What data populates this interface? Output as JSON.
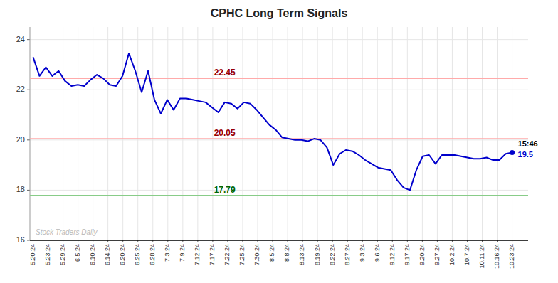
{
  "chart_data": {
    "type": "line",
    "title": "CPHC Long Term Signals",
    "color": "#0000cc",
    "x": [
      0,
      1,
      2,
      3,
      4,
      5,
      6,
      7,
      8,
      9,
      10,
      11,
      12,
      13,
      14,
      15,
      16,
      17,
      18,
      19,
      20,
      21,
      22,
      23,
      24,
      25,
      26,
      27,
      28,
      29,
      30,
      31,
      32,
      33,
      34,
      35,
      36,
      37,
      38,
      39,
      40,
      41,
      42,
      43,
      44,
      45,
      46,
      47,
      48,
      49,
      50,
      51,
      52,
      53,
      54,
      55,
      56,
      57,
      58,
      59,
      60,
      61,
      62,
      63,
      64,
      65,
      66,
      67,
      68,
      69,
      70,
      71,
      72,
      73,
      74,
      75
    ],
    "values": [
      23.3,
      22.55,
      22.9,
      22.55,
      22.75,
      22.35,
      22.15,
      22.2,
      22.15,
      22.4,
      22.6,
      22.45,
      22.2,
      22.15,
      22.55,
      23.45,
      22.75,
      21.9,
      22.75,
      21.6,
      21.05,
      21.6,
      21.2,
      21.65,
      21.65,
      21.6,
      21.55,
      21.5,
      21.3,
      21.1,
      21.5,
      21.45,
      21.25,
      21.5,
      21.45,
      21.2,
      20.9,
      20.6,
      20.4,
      20.1,
      20.05,
      20.0,
      20.0,
      19.95,
      20.05,
      20.0,
      19.7,
      19.0,
      19.45,
      19.6,
      19.55,
      19.4,
      19.2,
      19.05,
      18.9,
      18.85,
      18.8,
      18.4,
      18.1,
      18.0,
      18.8,
      19.35,
      19.4,
      19.05,
      19.4,
      19.4,
      19.4,
      19.35,
      19.3,
      19.25,
      19.25,
      19.3,
      19.2,
      19.2,
      19.45,
      19.5
    ],
    "value_labels": [
      null,
      null,
      null,
      null,
      null,
      null,
      null,
      null,
      null,
      null,
      null,
      null,
      null,
      null,
      null,
      null,
      null,
      null,
      null,
      null,
      null,
      null,
      null,
      null,
      null,
      null,
      null,
      null,
      null,
      null,
      null,
      null,
      null,
      null,
      null,
      null,
      null,
      null,
      null,
      null,
      null,
      null,
      null,
      null,
      null,
      null,
      null,
      null,
      null,
      null,
      null,
      null,
      null,
      null,
      null,
      null,
      null,
      null,
      null,
      null,
      null,
      null,
      null,
      null,
      null,
      null,
      null,
      null,
      null,
      null,
      null,
      null,
      null,
      null,
      null,
      "19.5"
    ],
    "xlim": [
      -0.5,
      77.5
    ],
    "xticks": [
      {
        "value": 0,
        "label": "5.20.24"
      },
      {
        "value": 2.34375,
        "label": "5.23.24"
      },
      {
        "value": 4.6875,
        "label": "5.29.24"
      },
      {
        "value": 7.03125,
        "label": "6.5.24"
      },
      {
        "value": 9.375,
        "label": "6.10.24"
      },
      {
        "value": 11.71875,
        "label": "6.14.24"
      },
      {
        "value": 14.0625,
        "label": "6.20.24"
      },
      {
        "value": 16.40625,
        "label": "6.25.24"
      },
      {
        "value": 18.75,
        "label": "6.28.24"
      },
      {
        "value": 21.09375,
        "label": "7.3.24"
      },
      {
        "value": 23.4375,
        "label": "7.9.24"
      },
      {
        "value": 25.78125,
        "label": "7.12.24"
      },
      {
        "value": 28.125,
        "label": "7.17.24"
      },
      {
        "value": 30.46875,
        "label": "7.22.24"
      },
      {
        "value": 32.8125,
        "label": "7.25.24"
      },
      {
        "value": 35.15625,
        "label": "7.30.24"
      },
      {
        "value": 37.5,
        "label": "8.5.24"
      },
      {
        "value": 39.84375,
        "label": "8.8.24"
      },
      {
        "value": 42.1875,
        "label": "8.13.24"
      },
      {
        "value": 44.53125,
        "label": "8.19.24"
      },
      {
        "value": 46.875,
        "label": "8.22.24"
      },
      {
        "value": 49.21875,
        "label": "8.27.24"
      },
      {
        "value": 51.5625,
        "label": "9.3.24"
      },
      {
        "value": 53.90625,
        "label": "9.6.24"
      },
      {
        "value": 56.25,
        "label": "9.12.24"
      },
      {
        "value": 58.59375,
        "label": "9.17.24"
      },
      {
        "value": 60.9375,
        "label": "9.20.24"
      },
      {
        "value": 63.28125,
        "label": "9.27.24"
      },
      {
        "value": 65.625,
        "label": "10.2.24"
      },
      {
        "value": 67.96875,
        "label": "10.7.24"
      },
      {
        "value": 70.3125,
        "label": "10.11.24"
      },
      {
        "value": 72.65625,
        "label": "10.16.24"
      },
      {
        "value": 75,
        "label": "10.23.24"
      }
    ],
    "ylim": [
      16,
      24.5
    ],
    "yticks": [
      16,
      18,
      20,
      22,
      24
    ],
    "grid": true,
    "reference_lines": [
      {
        "value": 22.45,
        "label": "22.45",
        "color": "#ffaaaa",
        "label_color": "#990000"
      },
      {
        "value": 20.05,
        "label": "20.05",
        "color": "#ffaaaa",
        "label_color": "#990000"
      },
      {
        "value": 17.79,
        "label": "17.79",
        "color": "#88cc88",
        "label_color": "#006600"
      }
    ],
    "annotations": [
      {
        "text": "15:46",
        "color": "#000000"
      },
      {
        "text": "Stock Traders Daily",
        "color": "#bbbbbb"
      }
    ]
  }
}
